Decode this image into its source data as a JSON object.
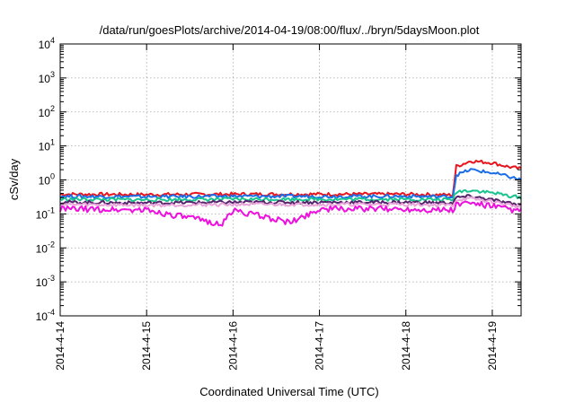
{
  "chart_data": {
    "type": "line",
    "title": "/data/run/goesPlots/archive/2014-04-19/08:00/flux/../bryn/5daysMoon.plot",
    "xlabel": "Coordinated Universal Time (UTC)",
    "ylabel": "cSv/day",
    "yscale": "log",
    "ylim": [
      0.0001,
      10000
    ],
    "xlim": [
      "2014-04-14",
      "2014-04-19 08:00"
    ],
    "grid": true,
    "legend": "none",
    "x_ticks": [
      "2014-4-14",
      "2014-4-15",
      "2014-4-16",
      "2014-4-17",
      "2014-4-18",
      "2014-4-19"
    ],
    "y_ticks": [
      {
        "base": "10",
        "exp": "-4",
        "value": 0.0001
      },
      {
        "base": "10",
        "exp": "-3",
        "value": 0.001
      },
      {
        "base": "10",
        "exp": "-2",
        "value": 0.01
      },
      {
        "base": "10",
        "exp": "-1",
        "value": 0.1
      },
      {
        "base": "10",
        "exp": "0",
        "value": 1
      },
      {
        "base": "10",
        "exp": "1",
        "value": 10
      },
      {
        "base": "10",
        "exp": "2",
        "value": 100
      },
      {
        "base": "10",
        "exp": "3",
        "value": 1000
      },
      {
        "base": "10",
        "exp": "4",
        "value": 10000
      }
    ],
    "series": [
      {
        "color": "#e8141c",
        "x": [
          "2014-04-14 00:00",
          "2014-04-15 00:00",
          "2014-04-16 00:00",
          "2014-04-17 00:00",
          "2014-04-18 00:00",
          "2014-04-18 13:00",
          "2014-04-18 14:00",
          "2014-04-18 18:00",
          "2014-04-19 00:00",
          "2014-04-19 04:00",
          "2014-04-19 08:00"
        ],
        "y": [
          0.38,
          0.37,
          0.38,
          0.38,
          0.38,
          0.36,
          2.5,
          3.6,
          3.2,
          2.5,
          2.1
        ]
      },
      {
        "color": "#1a6ee8",
        "x": [
          "2014-04-14 00:00",
          "2014-04-15 00:00",
          "2014-04-16 00:00",
          "2014-04-17 00:00",
          "2014-04-18 00:00",
          "2014-04-18 13:00",
          "2014-04-18 14:00",
          "2014-04-18 18:00",
          "2014-04-19 00:00",
          "2014-04-19 04:00",
          "2014-04-19 08:00"
        ],
        "y": [
          0.33,
          0.32,
          0.33,
          0.33,
          0.33,
          0.32,
          1.4,
          2.0,
          1.6,
          1.3,
          1.0
        ]
      },
      {
        "color": "#19c48e",
        "x": [
          "2014-04-14 00:00",
          "2014-04-15 00:00",
          "2014-04-16 00:00",
          "2014-04-17 00:00",
          "2014-04-18 00:00",
          "2014-04-18 13:00",
          "2014-04-18 14:00",
          "2014-04-18 18:00",
          "2014-04-19 00:00",
          "2014-04-19 04:00",
          "2014-04-19 08:00"
        ],
        "y": [
          0.27,
          0.26,
          0.27,
          0.27,
          0.27,
          0.26,
          0.45,
          0.5,
          0.42,
          0.35,
          0.3
        ]
      },
      {
        "color": "#55216b",
        "x": [
          "2014-04-14 00:00",
          "2014-04-15 00:00",
          "2014-04-16 00:00",
          "2014-04-17 00:00",
          "2014-04-18 00:00",
          "2014-04-18 13:00",
          "2014-04-18 14:00",
          "2014-04-18 18:00",
          "2014-04-19 00:00",
          "2014-04-19 04:00",
          "2014-04-19 08:00"
        ],
        "y": [
          0.22,
          0.21,
          0.22,
          0.22,
          0.22,
          0.21,
          0.3,
          0.33,
          0.26,
          0.21,
          0.18
        ]
      },
      {
        "color": "#e8a4d8",
        "x": [
          "2014-04-14 00:00",
          "2014-04-15 00:00",
          "2014-04-16 00:00",
          "2014-04-17 00:00",
          "2014-04-18 00:00",
          "2014-04-18 13:00",
          "2014-04-18 14:00",
          "2014-04-18 18:00",
          "2014-04-19 00:00",
          "2014-04-19 04:00",
          "2014-04-19 08:00"
        ],
        "y": [
          0.19,
          0.18,
          0.19,
          0.19,
          0.19,
          0.18,
          0.26,
          0.28,
          0.23,
          0.19,
          0.16
        ]
      },
      {
        "color": "#ee10de",
        "x": [
          "2014-04-14 00:00",
          "2014-04-15 00:00",
          "2014-04-15 21:00",
          "2014-04-16 00:00",
          "2014-04-16 16:00",
          "2014-04-17 00:00",
          "2014-04-18 00:00",
          "2014-04-18 13:00",
          "2014-04-18 14:00",
          "2014-04-18 18:00",
          "2014-04-19 00:00",
          "2014-04-19 04:00",
          "2014-04-19 08:00"
        ],
        "y": [
          0.14,
          0.13,
          0.05,
          0.13,
          0.055,
          0.14,
          0.14,
          0.13,
          0.19,
          0.21,
          0.17,
          0.14,
          0.12
        ]
      }
    ]
  }
}
